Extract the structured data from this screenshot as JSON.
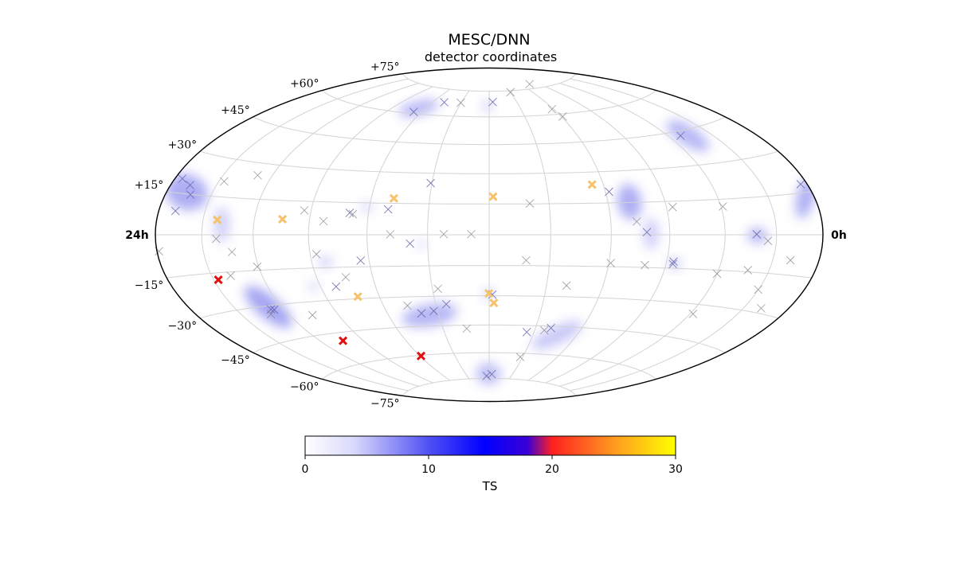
{
  "chart_data": {
    "type": "scatter",
    "projection": "hammer",
    "title": "MESC/DNN",
    "subtitle": "detector coordinates",
    "ra_labels": {
      "left": "24h",
      "right": "0h"
    },
    "dec_ticks": [
      {
        "dec": 75,
        "label": "+75°"
      },
      {
        "dec": 60,
        "label": "+60°"
      },
      {
        "dec": 45,
        "label": "+45°"
      },
      {
        "dec": 30,
        "label": "+30°"
      },
      {
        "dec": 15,
        "label": "+15°"
      },
      {
        "dec": -15,
        "label": "−15°"
      },
      {
        "dec": -30,
        "label": "−30°"
      },
      {
        "dec": -45,
        "label": "−45°"
      },
      {
        "dec": -60,
        "label": "−60°"
      },
      {
        "dec": -75,
        "label": "−75°"
      }
    ],
    "grid": true,
    "colorbar": {
      "label": "TS",
      "range": [
        0,
        30
      ],
      "ticks": [
        0,
        10,
        20,
        30
      ],
      "stops": [
        {
          "v": 0,
          "c": "#ffffff"
        },
        {
          "v": 4,
          "c": "#d8d8fb"
        },
        {
          "v": 10,
          "c": "#5050f5"
        },
        {
          "v": 14.5,
          "c": "#0000ff"
        },
        {
          "v": 18,
          "c": "#3a00d8"
        },
        {
          "v": 20,
          "c": "#ff2020"
        },
        {
          "v": 25,
          "c": "#ff9a20"
        },
        {
          "v": 30,
          "c": "#ffff00"
        }
      ]
    },
    "colors": {
      "faint": "#8a8a8a",
      "blue_mark": "#6a6ab0",
      "orange": "#f6c36a",
      "red": "#e30f0f",
      "blob": "#8c8cf0",
      "grid": "#d3d3d3"
    },
    "blobs": [
      {
        "lon": -66.6,
        "lat": 63.1,
        "w": 52,
        "h": 18,
        "rot": -14,
        "ts": 7
      },
      {
        "lon": -1.8,
        "lat": 66.2,
        "w": 14,
        "h": 14,
        "rot": 0,
        "ts": 4
      },
      {
        "lon": -166.6,
        "lat": 15.7,
        "w": 55,
        "h": 45,
        "rot": 20,
        "ts": 8
      },
      {
        "lon": -138.3,
        "lat": 4.1,
        "w": 20,
        "h": 45,
        "rot": 0,
        "ts": 4
      },
      {
        "lon": 71.2,
        "lat": 15.3,
        "w": 30,
        "h": 45,
        "rot": -10,
        "ts": 8
      },
      {
        "lon": 80.3,
        "lat": 0.5,
        "w": 20,
        "h": 40,
        "rot": 0,
        "ts": 4
      },
      {
        "lon": 133.3,
        "lat": 42.5,
        "w": 62,
        "h": 24,
        "rot": 33,
        "ts": 7
      },
      {
        "lon": 174.4,
        "lat": 13.5,
        "w": 22,
        "h": 56,
        "rot": 15,
        "ts": 8
      },
      {
        "lon": 138.5,
        "lat": -0.3,
        "w": 25,
        "h": 20,
        "rot": 0,
        "ts": 7
      },
      {
        "lon": -128.5,
        "lat": -30.5,
        "w": 75,
        "h": 28,
        "rot": 40,
        "ts": 9
      },
      {
        "lon": -35.4,
        "lat": -39.5,
        "w": 70,
        "h": 28,
        "rot": -10,
        "ts": 7
      },
      {
        "lon": 94.6,
        "lat": -12.9,
        "w": 16,
        "h": 14,
        "rot": 0,
        "ts": 5
      },
      {
        "lon": 46.7,
        "lat": -49.6,
        "w": 70,
        "h": 22,
        "rot": -25,
        "ts": 5
      },
      {
        "lon": -0.9,
        "lat": -72.2,
        "w": 32,
        "h": 28,
        "rot": 0,
        "ts": 6
      },
      {
        "lon": -82.7,
        "lat": -12.4,
        "w": 18,
        "h": 15,
        "rot": 0,
        "ts": 4
      },
      {
        "lon": -93.9,
        "lat": -23.2,
        "w": 14,
        "h": 14,
        "rot": 0,
        "ts": 3
      },
      {
        "lon": -61.3,
        "lat": 12.9,
        "w": 16,
        "h": 14,
        "rot": 0,
        "ts": 3
      },
      {
        "lon": -0.5,
        "lat": -29.1,
        "w": 14,
        "h": 14,
        "rot": 0,
        "ts": 4
      },
      {
        "lon": -33.0,
        "lat": -4.6,
        "w": 12,
        "h": 12,
        "rot": 0,
        "ts": 3
      }
    ],
    "markers": [
      {
        "lon": -174.9,
        "lat": 20.1,
        "ts": 5
      },
      {
        "lon": -166.9,
        "lat": 18.3,
        "ts": 5
      },
      {
        "lon": -163.2,
        "lat": 14.9,
        "ts": 4
      },
      {
        "lon": -146.7,
        "lat": 21.1,
        "ts": 2
      },
      {
        "lon": -128.8,
        "lat": 24.9,
        "ts": 2
      },
      {
        "lon": -168.8,
        "lat": 8.6,
        "ts": 4
      },
      {
        "lon": -178.6,
        "lat": -5.7,
        "ts": 2
      },
      {
        "lon": -141.4,
        "lat": -1.6,
        "ts": 2
      },
      {
        "lon": -133.0,
        "lat": -7.0,
        "ts": 2
      },
      {
        "lon": -138.5,
        "lat": -16.5,
        "ts": 2
      },
      {
        "lon": -120.8,
        "lat": -13.5,
        "ts": 2
      },
      {
        "lon": -93.6,
        "lat": 10.9,
        "ts": 2
      },
      {
        "lon": -82.6,
        "lat": 6.2,
        "ts": 2
      },
      {
        "lon": -86.7,
        "lat": -8.8,
        "ts": 2
      },
      {
        "lon": -74.3,
        "lat": -19.7,
        "ts": 2
      },
      {
        "lon": -64.3,
        "lat": -12.1,
        "ts": 5
      },
      {
        "lon": -81.5,
        "lat": -23.9,
        "ts": 5
      },
      {
        "lon": -69.6,
        "lat": 10.2,
        "ts": 5
      },
      {
        "lon": -67.9,
        "lat": 9.6,
        "ts": 2
      },
      {
        "lon": -50.3,
        "lat": 12.1,
        "ts": 5
      },
      {
        "lon": -48.4,
        "lat": 0.2,
        "ts": 2
      },
      {
        "lon": -38.7,
        "lat": -4.2,
        "ts": 5
      },
      {
        "lon": -30.7,
        "lat": 25.1,
        "ts": 5
      },
      {
        "lon": -22.1,
        "lat": 0.3,
        "ts": 2
      },
      {
        "lon": -8.7,
        "lat": 0.3,
        "ts": 2
      },
      {
        "lon": -66.9,
        "lat": 60.9,
        "ts": 5
      },
      {
        "lon": -48.0,
        "lat": 67.4,
        "ts": 5
      },
      {
        "lon": -30.5,
        "lat": 67.8,
        "ts": 2
      },
      {
        "lon": 3.9,
        "lat": 68.5,
        "ts": 5
      },
      {
        "lon": 20.3,
        "lat": 15.2,
        "ts": 2
      },
      {
        "lon": 73.2,
        "lat": 6.1,
        "ts": 2
      },
      {
        "lon": 61.9,
        "lat": 20.3,
        "ts": 5
      },
      {
        "lon": 93.3,
        "lat": 12.4,
        "ts": 2
      },
      {
        "lon": 121.1,
        "lat": 11.9,
        "ts": 2
      },
      {
        "lon": 78.1,
        "lat": 1.2,
        "ts": 5
      },
      {
        "lon": 138.1,
        "lat": 0.2,
        "ts": 5
      },
      {
        "lon": 144.9,
        "lat": -2.4,
        "ts": 2
      },
      {
        "lon": 161.1,
        "lat": -9.5,
        "ts": 2
      },
      {
        "lon": 93.7,
        "lat": -12.0,
        "ts": 5
      },
      {
        "lon": 93.7,
        "lat": -13.1,
        "ts": 5
      },
      {
        "lon": 78.9,
        "lat": -13.9,
        "ts": 2
      },
      {
        "lon": 61.0,
        "lat": -13.3,
        "ts": 2
      },
      {
        "lon": 18.3,
        "lat": -12.4,
        "ts": 2
      },
      {
        "lon": 40.6,
        "lat": -24.5,
        "ts": 2
      },
      {
        "lon": 120.0,
        "lat": -16.5,
        "ts": 2
      },
      {
        "lon": 137.1,
        "lat": -14.3,
        "ts": 2
      },
      {
        "lon": 149.8,
        "lat": -21.5,
        "ts": 2
      },
      {
        "lon": 161.5,
        "lat": -28.1,
        "ts": 2
      },
      {
        "lon": 121.9,
        "lat": -34.2,
        "ts": 2
      },
      {
        "lon": -46.3,
        "lat": -34.3,
        "ts": 2
      },
      {
        "lon": -39.9,
        "lat": -38.4,
        "ts": 5
      },
      {
        "lon": -32.2,
        "lat": -37.4,
        "ts": 5
      },
      {
        "lon": -24.1,
        "lat": -34.1,
        "ts": 5
      },
      {
        "lon": -27.1,
        "lat": -26.3,
        "ts": 2
      },
      {
        "lon": -14.6,
        "lat": -46.8,
        "ts": 2
      },
      {
        "lon": 1.7,
        "lat": -29.4,
        "ts": 5
      },
      {
        "lon": -105.9,
        "lat": -36.0,
        "ts": 2
      },
      {
        "lon": -128.1,
        "lat": -31.6,
        "ts": 5
      },
      {
        "lon": -126.3,
        "lat": -31.9,
        "ts": 5
      },
      {
        "lon": -131.0,
        "lat": -33.6,
        "ts": 2
      },
      {
        "lon": 40.1,
        "lat": -46.0,
        "ts": 5
      },
      {
        "lon": 36.4,
        "lat": -47.3,
        "ts": 2
      },
      {
        "lon": 25.2,
        "lat": -48.5,
        "ts": 5
      },
      {
        "lon": 27.8,
        "lat": -62.1,
        "ts": 2
      },
      {
        "lon": -3.5,
        "lat": -73.5,
        "ts": 5
      },
      {
        "lon": 3.3,
        "lat": -72.5,
        "ts": 5
      },
      {
        "lon": 30.4,
        "lat": 74.1,
        "ts": 2
      },
      {
        "lon": 58.4,
        "lat": 62.9,
        "ts": 2
      },
      {
        "lon": 61.2,
        "lat": 58.6,
        "ts": 2
      },
      {
        "lon": 128.4,
        "lat": 43.0,
        "ts": 5
      },
      {
        "lon": 175.5,
        "lat": 18.0,
        "ts": 5
      },
      {
        "lon": 75.9,
        "lat": 77.7,
        "ts": 2
      },
      {
        "lon": -104.5,
        "lat": 6.8,
        "ts": 26
      },
      {
        "lon": -48.3,
        "lat": 17.4,
        "ts": 26
      },
      {
        "lon": 2.0,
        "lat": 18.6,
        "ts": 26
      },
      {
        "lon": -141.4,
        "lat": 5.9,
        "ts": 26
      },
      {
        "lon": 54.0,
        "lat": 23.9,
        "ts": 26
      },
      {
        "lon": -0.2,
        "lat": -28.8,
        "ts": 26
      },
      {
        "lon": 2.6,
        "lat": -33.6,
        "ts": 26
      },
      {
        "lon": -72.0,
        "lat": -29.0,
        "ts": 26
      },
      {
        "lon": -147.2,
        "lat": -17.7,
        "ts": 21
      },
      {
        "lon": -104.2,
        "lat": -48.9,
        "ts": 21
      },
      {
        "lon": -59.2,
        "lat": -60.4,
        "ts": 21
      }
    ]
  }
}
